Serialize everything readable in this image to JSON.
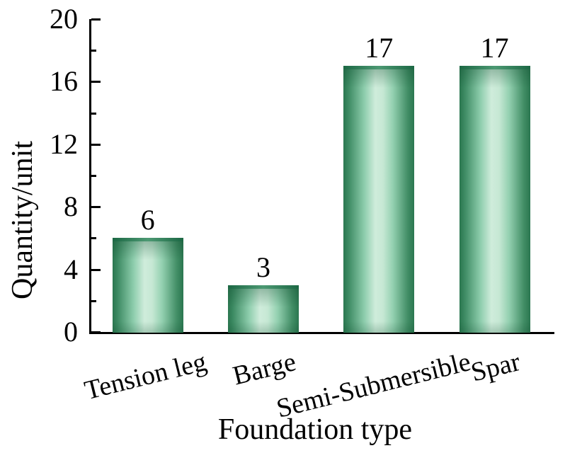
{
  "chart_data": {
    "type": "bar",
    "title": "",
    "categories": [
      "Tension leg",
      "Barge",
      "Semi-Submersible",
      "Spar"
    ],
    "values": [
      6,
      3,
      17,
      17
    ],
    "bar_value_labels": [
      "6",
      "3",
      "17",
      "17"
    ],
    "xlabel": "Foundation type",
    "ylabel": "Quantity/unit",
    "ylim": [
      0,
      20
    ],
    "yticks_major": [
      0,
      4,
      8,
      12,
      16,
      20
    ],
    "yticks_minor": [
      2,
      6,
      10,
      14,
      18
    ],
    "ytick_labels": [
      "0",
      "4",
      "8",
      "12",
      "16",
      "20"
    ],
    "grid": false,
    "legend": null,
    "colors": {
      "bar_edge": "#2b7750",
      "bar_highlight": "#cfecdb",
      "bar_cap": "#1c6844",
      "axis": "#000000",
      "text": "#000000",
      "background": "#ffffff"
    }
  }
}
